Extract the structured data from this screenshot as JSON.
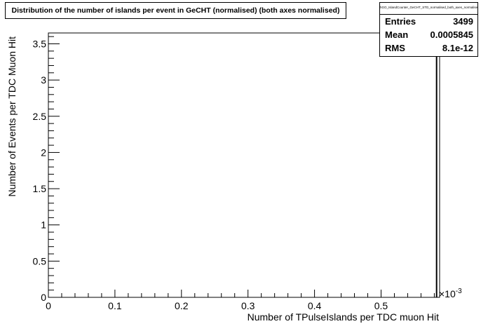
{
  "title": "Distribution of the number of islands per event in GeCHT (normalised) (both axes normalised)",
  "stats": {
    "name": "hGO_IslandCounter_GeCHT_STD_normalised_both_axes_normalised",
    "rows": [
      {
        "label": "Entries",
        "value": "3499"
      },
      {
        "label": "Mean",
        "value": "0.0005845"
      },
      {
        "label": "RMS",
        "value": "8.1e-12"
      }
    ]
  },
  "chart_data": {
    "type": "bar",
    "xlabel": "Number of TPulseIslands per TDC muon Hit",
    "ylabel": "Number of Events per TDC Muon Hit",
    "x_exponent": "×10",
    "x_exponent_power": "-3",
    "xlim": [
      0,
      0.588
    ],
    "ylim": [
      0,
      3.65
    ],
    "x_ticks": [
      "0",
      "0.1",
      "0.2",
      "0.3",
      "0.4",
      "0.5"
    ],
    "y_ticks": [
      "0",
      "0.5",
      "1",
      "1.5",
      "2",
      "2.5",
      "3",
      "3.5"
    ],
    "bins": [
      {
        "x": 0.5845,
        "y": 3.62
      }
    ]
  }
}
